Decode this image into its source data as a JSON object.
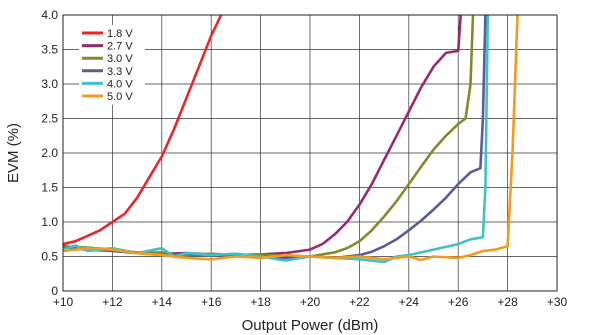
{
  "chart_data": {
    "type": "line",
    "title": "",
    "xlabel": "Output Power (dBm)",
    "ylabel": "EVM (%)",
    "xlim": [
      10,
      30
    ],
    "ylim": [
      0,
      4.0
    ],
    "x_ticks": [
      10,
      12,
      14,
      16,
      18,
      20,
      22,
      24,
      26,
      28,
      30
    ],
    "x_tick_labels": [
      "+10",
      "+12",
      "+14",
      "+16",
      "+18",
      "+20",
      "+22",
      "+24",
      "+26",
      "+28",
      "+30"
    ],
    "y_ticks": [
      0,
      0.5,
      1.0,
      1.5,
      2.0,
      2.5,
      3.0,
      3.5,
      4.0
    ],
    "y_tick_labels": [
      "0",
      "0.5",
      "1.0",
      "1.5",
      "2.0",
      "2.5",
      "3.0",
      "3.5",
      "4.0"
    ],
    "grid": true,
    "legend_position": "top-left",
    "series": [
      {
        "name": "1.8 V",
        "color": "#e8262a",
        "points": [
          [
            10,
            0.68
          ],
          [
            10.5,
            0.72
          ],
          [
            11,
            0.8
          ],
          [
            11.5,
            0.88
          ],
          [
            12,
            1.0
          ],
          [
            12.5,
            1.12
          ],
          [
            13,
            1.35
          ],
          [
            13.5,
            1.65
          ],
          [
            14,
            1.95
          ],
          [
            14.5,
            2.35
          ],
          [
            15,
            2.8
          ],
          [
            15.5,
            3.25
          ],
          [
            16,
            3.7
          ],
          [
            16.4,
            4.0
          ]
        ]
      },
      {
        "name": "2.7 V",
        "color": "#9a2a6e",
        "points": [
          [
            10,
            0.65
          ],
          [
            11,
            0.62
          ],
          [
            12,
            0.6
          ],
          [
            13,
            0.56
          ],
          [
            14,
            0.54
          ],
          [
            15,
            0.55
          ],
          [
            16,
            0.53
          ],
          [
            17,
            0.52
          ],
          [
            18,
            0.53
          ],
          [
            19,
            0.55
          ],
          [
            20,
            0.6
          ],
          [
            20.5,
            0.68
          ],
          [
            21,
            0.82
          ],
          [
            21.5,
            1.0
          ],
          [
            22,
            1.25
          ],
          [
            22.5,
            1.55
          ],
          [
            23,
            1.9
          ],
          [
            23.5,
            2.25
          ],
          [
            24,
            2.6
          ],
          [
            24.5,
            2.95
          ],
          [
            25,
            3.25
          ],
          [
            25.5,
            3.45
          ],
          [
            26,
            3.48
          ],
          [
            26.1,
            4.0
          ]
        ]
      },
      {
        "name": "3.0 V",
        "color": "#7f8c2d",
        "points": [
          [
            10,
            0.64
          ],
          [
            11,
            0.63
          ],
          [
            12,
            0.6
          ],
          [
            13,
            0.55
          ],
          [
            14,
            0.56
          ],
          [
            15,
            0.52
          ],
          [
            16,
            0.54
          ],
          [
            17,
            0.52
          ],
          [
            18,
            0.53
          ],
          [
            19,
            0.5
          ],
          [
            20,
            0.5
          ],
          [
            21,
            0.56
          ],
          [
            21.5,
            0.62
          ],
          [
            22,
            0.72
          ],
          [
            22.5,
            0.88
          ],
          [
            23,
            1.08
          ],
          [
            23.5,
            1.3
          ],
          [
            24,
            1.55
          ],
          [
            24.5,
            1.8
          ],
          [
            25,
            2.05
          ],
          [
            25.5,
            2.25
          ],
          [
            26,
            2.42
          ],
          [
            26.3,
            2.5
          ],
          [
            26.5,
            3.0
          ],
          [
            26.6,
            4.0
          ]
        ]
      },
      {
        "name": "3.3 V",
        "color": "#5a5c9a",
        "points": [
          [
            10,
            0.62
          ],
          [
            11,
            0.6
          ],
          [
            12,
            0.58
          ],
          [
            13,
            0.55
          ],
          [
            14,
            0.52
          ],
          [
            15,
            0.54
          ],
          [
            16,
            0.51
          ],
          [
            17,
            0.53
          ],
          [
            18,
            0.5
          ],
          [
            19,
            0.48
          ],
          [
            20,
            0.5
          ],
          [
            21,
            0.48
          ],
          [
            22,
            0.52
          ],
          [
            22.5,
            0.57
          ],
          [
            23,
            0.65
          ],
          [
            23.5,
            0.75
          ],
          [
            24,
            0.88
          ],
          [
            24.5,
            1.02
          ],
          [
            25,
            1.18
          ],
          [
            25.5,
            1.35
          ],
          [
            26,
            1.55
          ],
          [
            26.5,
            1.72
          ],
          [
            26.9,
            1.78
          ],
          [
            27,
            2.5
          ],
          [
            27.1,
            4.0
          ]
        ]
      },
      {
        "name": "4.0 V",
        "color": "#3fc1c9",
        "points": [
          [
            10,
            0.6
          ],
          [
            10.5,
            0.66
          ],
          [
            11,
            0.58
          ],
          [
            12,
            0.62
          ],
          [
            13,
            0.55
          ],
          [
            14,
            0.62
          ],
          [
            14.5,
            0.5
          ],
          [
            15,
            0.55
          ],
          [
            16,
            0.52
          ],
          [
            17,
            0.54
          ],
          [
            18,
            0.5
          ],
          [
            19,
            0.44
          ],
          [
            20,
            0.5
          ],
          [
            21,
            0.48
          ],
          [
            22,
            0.46
          ],
          [
            23,
            0.42
          ],
          [
            23.5,
            0.5
          ],
          [
            24,
            0.52
          ],
          [
            25,
            0.6
          ],
          [
            26,
            0.68
          ],
          [
            26.5,
            0.75
          ],
          [
            27,
            0.78
          ],
          [
            27.1,
            1.5
          ],
          [
            27.2,
            4.0
          ]
        ]
      },
      {
        "name": "5.0 V",
        "color": "#f39b1f",
        "points": [
          [
            10,
            0.58
          ],
          [
            11,
            0.62
          ],
          [
            12,
            0.6
          ],
          [
            13,
            0.55
          ],
          [
            14,
            0.52
          ],
          [
            15,
            0.48
          ],
          [
            16,
            0.46
          ],
          [
            17,
            0.5
          ],
          [
            18,
            0.48
          ],
          [
            19,
            0.52
          ],
          [
            20,
            0.5
          ],
          [
            21,
            0.48
          ],
          [
            22,
            0.5
          ],
          [
            23,
            0.46
          ],
          [
            24,
            0.5
          ],
          [
            24.5,
            0.45
          ],
          [
            25,
            0.5
          ],
          [
            26,
            0.48
          ],
          [
            26.5,
            0.52
          ],
          [
            27,
            0.58
          ],
          [
            27.5,
            0.6
          ],
          [
            28,
            0.65
          ],
          [
            28.2,
            2.0
          ],
          [
            28.4,
            4.0
          ]
        ]
      }
    ]
  }
}
